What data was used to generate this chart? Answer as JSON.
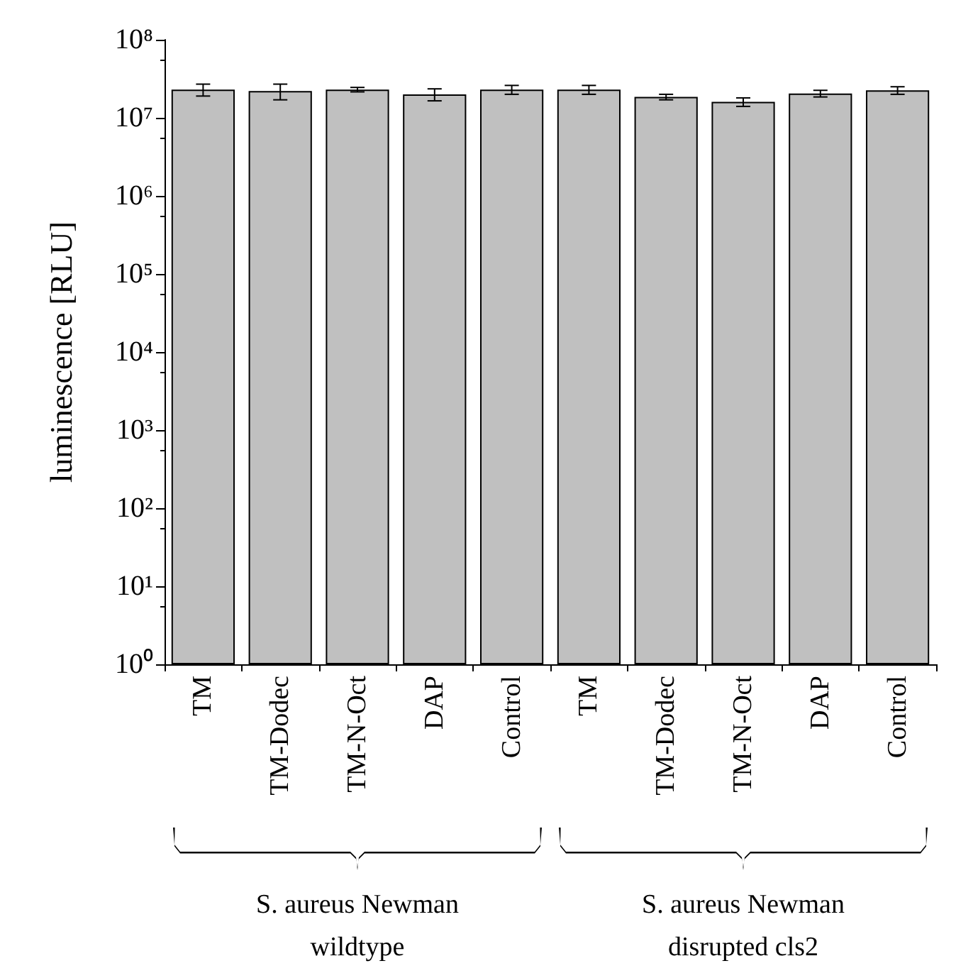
{
  "chart_data": {
    "type": "bar",
    "ylabel": "luminescence [RLU]",
    "categories": [
      "TM",
      "TM-Dodec",
      "TM-N-Oct",
      "DAP",
      "Control",
      "TM",
      "TM-Dodec",
      "TM-N-Oct",
      "DAP",
      "Control"
    ],
    "values": [
      23000000,
      22000000,
      23000000,
      20000000,
      23000000,
      23000000,
      18500000,
      16000000,
      20500000,
      22500000
    ],
    "errors": [
      4000000,
      5000000,
      1500000,
      3500000,
      3000000,
      3000000,
      1500000,
      2000000,
      2000000,
      2500000
    ],
    "color": "#c0c0c0",
    "log": true,
    "ylim": [
      1,
      100000000
    ],
    "yticks": [
      {
        "value": 1,
        "label": "10⁰"
      },
      {
        "value": 10,
        "label": "10¹"
      },
      {
        "value": 100,
        "label": "10²"
      },
      {
        "value": 1000,
        "label": "10³"
      },
      {
        "value": 10000,
        "label": "10⁴"
      },
      {
        "value": 100000,
        "label": "10⁵"
      },
      {
        "value": 1000000,
        "label": "10⁶"
      },
      {
        "value": 10000000,
        "label": "10⁷"
      },
      {
        "value": 100000000,
        "label": "10⁸"
      }
    ],
    "annotations": [
      "S. aureus Newman\nwildtype",
      "S. aureus Newman\ndisrupted cls2"
    ],
    "grid": false
  }
}
